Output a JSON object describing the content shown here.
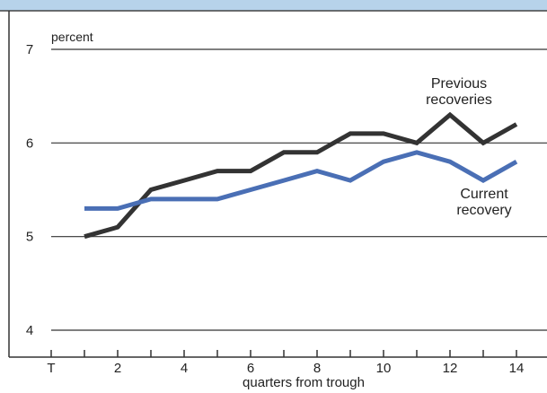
{
  "chart_data": {
    "type": "line",
    "xlabel": "quarters from trough",
    "ylabel": "percent",
    "xlim": [
      0,
      15
    ],
    "ylim": [
      4,
      7
    ],
    "x_ticks": [
      0,
      1,
      2,
      3,
      4,
      5,
      6,
      7,
      8,
      9,
      10,
      11,
      12,
      13,
      14
    ],
    "x_tick_labels": [
      "T",
      "",
      "2",
      "",
      "4",
      "",
      "6",
      "",
      "8",
      "",
      "10",
      "",
      "12",
      "",
      "14"
    ],
    "y_ticks": [
      4,
      5,
      6,
      7
    ],
    "y_tick_labels": [
      "4",
      "5",
      "6",
      "7"
    ],
    "grid": "horizontal",
    "series": [
      {
        "name": "Previous recoveries",
        "name_lines": [
          "Previous",
          "recoveries"
        ],
        "color": "#333333",
        "x": [
          1,
          2,
          3,
          4,
          5,
          6,
          7,
          8,
          9,
          10,
          11,
          12,
          13,
          14
        ],
        "values": [
          5.0,
          5.1,
          5.5,
          5.6,
          5.7,
          5.7,
          5.9,
          5.9,
          6.1,
          6.1,
          6.0,
          6.3,
          6.0,
          6.2
        ]
      },
      {
        "name": "Current recovery",
        "name_lines": [
          "Current",
          "recovery"
        ],
        "color": "#4a6fb5",
        "x": [
          1,
          2,
          3,
          4,
          5,
          6,
          7,
          8,
          9,
          10,
          11,
          12,
          13,
          14
        ],
        "values": [
          5.3,
          5.3,
          5.4,
          5.4,
          5.4,
          5.5,
          5.6,
          5.7,
          5.6,
          5.8,
          5.9,
          5.8,
          5.6,
          5.8
        ]
      }
    ]
  }
}
